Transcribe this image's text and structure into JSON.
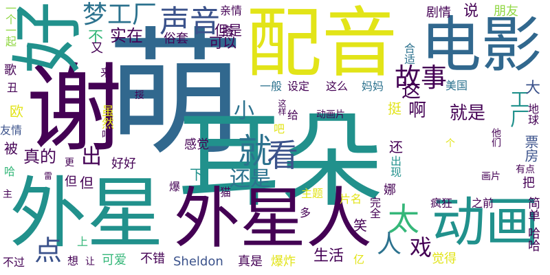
{
  "palette": {
    "purple": "#440154",
    "indigo": "#3b528b",
    "blue": "#31688e",
    "teal": "#21918c",
    "green": "#35b779",
    "lime": "#90d743",
    "yellow": "#fde725"
  },
  "words": [
    {
      "id": "meng",
      "text": "萌",
      "color": "#31688e"
    },
    {
      "id": "erduo",
      "text": "耳朵",
      "color": "#21918c"
    },
    {
      "id": "peiyin",
      "text": "配音",
      "color": "#e2e418"
    },
    {
      "id": "dianying",
      "text": "电影",
      "color": "#31688e"
    },
    {
      "id": "xie",
      "text": "谢",
      "color": "#440154"
    },
    {
      "id": "hao",
      "text": "好",
      "color": "#21918c"
    },
    {
      "id": "waixing",
      "text": "外星",
      "color": "#21918c"
    },
    {
      "id": "waixingren",
      "text": "外星人",
      "color": "#440154"
    },
    {
      "id": "donghua",
      "text": "动画",
      "color": "#21918c"
    },
    {
      "id": "shengyin",
      "text": "声音",
      "color": "#3b528b"
    },
    {
      "id": "mengonggchang",
      "text": "梦工厂",
      "color": "#2c728e"
    },
    {
      "id": "gushi",
      "text": "故事",
      "color": "#440154"
    },
    {
      "id": "jiu",
      "text": "就",
      "color": "#2c728e"
    },
    {
      "id": "kan",
      "text": "看",
      "color": "#3b528b"
    },
    {
      "id": "haishi",
      "text": "还是",
      "color": "#2c728e"
    },
    {
      "id": "tai",
      "text": "太",
      "color": "#35b779"
    },
    {
      "id": "ren",
      "text": "人",
      "color": "#2c728e"
    },
    {
      "id": "xi",
      "text": "戏",
      "color": "#440154"
    },
    {
      "id": "dian",
      "text": "点",
      "color": "#3b528b"
    },
    {
      "id": "xiao",
      "text": "小",
      "color": "#2c728e"
    },
    {
      "id": "chu",
      "text": "出",
      "color": "#440154"
    },
    {
      "id": "zhende",
      "text": "真的",
      "color": "#440154"
    },
    {
      "id": "shizai",
      "text": "实在",
      "color": "#440154"
    },
    {
      "id": "bu",
      "text": "不",
      "color": "#35b779"
    },
    {
      "id": "danshi",
      "text": "但是",
      "color": "#440154"
    },
    {
      "id": "keyi",
      "text": "可以",
      "color": "#440154"
    },
    {
      "id": "suitao",
      "text": "俗套",
      "color": "#440154"
    },
    {
      "id": "qinqing",
      "text": "亲情",
      "color": "#440154"
    },
    {
      "id": "da",
      "text": "搭",
      "color": "#440154"
    },
    {
      "id": "juqing",
      "text": "剧情",
      "color": "#440154"
    },
    {
      "id": "pengyou",
      "text": "朋友",
      "color": "#90d743"
    },
    {
      "id": "shuo",
      "text": "说",
      "color": "#440154"
    },
    {
      "id": "heshi",
      "text": "合适",
      "color": "#2c728e"
    },
    {
      "id": "gongchang",
      "text": "工厂",
      "color": "#21918c"
    },
    {
      "id": "da2",
      "text": "大",
      "color": "#3b528b"
    },
    {
      "id": "diqiu",
      "text": "地球",
      "color": "#440154"
    },
    {
      "id": "meiguo",
      "text": "美国",
      "color": "#2c728e"
    },
    {
      "id": "yiban",
      "text": "一般",
      "color": "#2c728e"
    },
    {
      "id": "sheding",
      "text": "设定",
      "color": "#440154"
    },
    {
      "id": "zheme",
      "text": "这么",
      "color": "#440154"
    },
    {
      "id": "mama",
      "text": "妈妈",
      "color": "#2c728e"
    },
    {
      "id": "zhe",
      "text": "这",
      "color": "#440154"
    },
    {
      "id": "a",
      "text": "啊",
      "color": "#440154"
    },
    {
      "id": "jiushi",
      "text": "就是",
      "color": "#440154"
    },
    {
      "id": "ting",
      "text": "挺",
      "color": "#e2e418"
    },
    {
      "id": "tamen",
      "text": "他们",
      "color": "#440154"
    },
    {
      "id": "piaofang",
      "text": "票房",
      "color": "#3b528b"
    },
    {
      "id": "donghuapian",
      "text": "动画片",
      "color": "#440154"
    },
    {
      "id": "ge",
      "text": "给",
      "color": "#440154"
    },
    {
      "id": "zheyang",
      "text": "这样",
      "color": "#440154"
    },
    {
      "id": "ba",
      "text": "吧",
      "color": "#e2e418"
    },
    {
      "id": "huan",
      "text": "还",
      "color": "#440154"
    },
    {
      "id": "chuxian",
      "text": "出现",
      "color": "#21918c"
    },
    {
      "id": "huapian",
      "text": "画片",
      "color": "#440154"
    },
    {
      "id": "ge2",
      "text": "个",
      "color": "#e2e418"
    },
    {
      "id": "youdian",
      "text": "有点",
      "color": "#440154"
    },
    {
      "id": "ba2",
      "text": "把",
      "color": "#440154"
    },
    {
      "id": "jiandan",
      "text": "简单",
      "color": "#440154"
    },
    {
      "id": "haha",
      "text": "哈哈",
      "color": "#440154"
    },
    {
      "id": "juede",
      "text": "觉得",
      "color": "#e2e418"
    },
    {
      "id": "ganjue",
      "text": "感觉",
      "color": "#440154"
    },
    {
      "id": "haohao",
      "text": "好好",
      "color": "#440154"
    },
    {
      "id": "suiran",
      "text": "虽然",
      "color": "#e2e418"
    },
    {
      "id": "ba3",
      "text": "吧",
      "color": "#440154"
    },
    {
      "id": "ou",
      "text": "欧",
      "color": "#e2e418"
    },
    {
      "id": "bei",
      "text": "被",
      "color": "#440154"
    },
    {
      "id": "youqing",
      "text": "友情",
      "color": "#3b528b"
    },
    {
      "id": "ha",
      "text": "哈",
      "color": "#35b779"
    },
    {
      "id": "geng",
      "text": "更",
      "color": "#440154"
    },
    {
      "id": "zhu",
      "text": "主",
      "color": "#440154"
    },
    {
      "id": "dan",
      "text": "但",
      "color": "#440154"
    },
    {
      "id": "bao",
      "text": "爆",
      "color": "#440154"
    },
    {
      "id": "xia",
      "text": "下",
      "color": "#21918c"
    },
    {
      "id": "mao",
      "text": "猫",
      "color": "#440154"
    },
    {
      "id": "zhuti",
      "text": "主题",
      "color": "#e2e418"
    },
    {
      "id": "duo",
      "text": "多",
      "color": "#440154"
    },
    {
      "id": "pianming",
      "text": "片名",
      "color": "#e2e418"
    },
    {
      "id": "wanquan",
      "text": "完全",
      "color": "#440154"
    },
    {
      "id": "na",
      "text": "娜",
      "color": "#440154"
    },
    {
      "id": "fengkuang",
      "text": "疯狂",
      "color": "#440154"
    },
    {
      "id": "zhiqian",
      "text": "之前",
      "color": "#440154"
    },
    {
      "id": "xiao2",
      "text": "笑",
      "color": "#440154"
    },
    {
      "id": "shenghuo",
      "text": "生活",
      "color": "#440154"
    },
    {
      "id": "yi",
      "text": "亿",
      "color": "#e2e418"
    },
    {
      "id": "zhenshi",
      "text": "真是",
      "color": "#440154"
    },
    {
      "id": "baozha",
      "text": "爆炸",
      "color": "#e2e418"
    },
    {
      "id": "sheldon",
      "text": "Sheldon",
      "color": "#3b528b"
    },
    {
      "id": "bucuo",
      "text": "不错",
      "color": "#440154"
    },
    {
      "id": "keai",
      "text": "可爱",
      "color": "#35b779"
    },
    {
      "id": "rang",
      "text": "让",
      "color": "#440154"
    },
    {
      "id": "xiang",
      "text": "想",
      "color": "#440154"
    },
    {
      "id": "buguo",
      "text": "不过",
      "color": "#440154"
    },
    {
      "id": "shang",
      "text": "上",
      "color": "#35b779"
    },
    {
      "id": "dan2",
      "text": "但",
      "color": "#440154"
    },
    {
      "id": "ge3",
      "text": "歌",
      "color": "#440154"
    },
    {
      "id": "chou",
      "text": "丑",
      "color": "#440154"
    },
    {
      "id": "yigeyiqi",
      "text": "一个一起",
      "color": "#90d743"
    },
    {
      "id": "you",
      "text": "又",
      "color": "#440154"
    },
    {
      "id": "lai",
      "text": "来",
      "color": "#440154"
    },
    {
      "id": "lei",
      "text": "雷",
      "color": "#440154"
    },
    {
      "id": "ruo",
      "text": "挼",
      "color": "#440154"
    }
  ]
}
